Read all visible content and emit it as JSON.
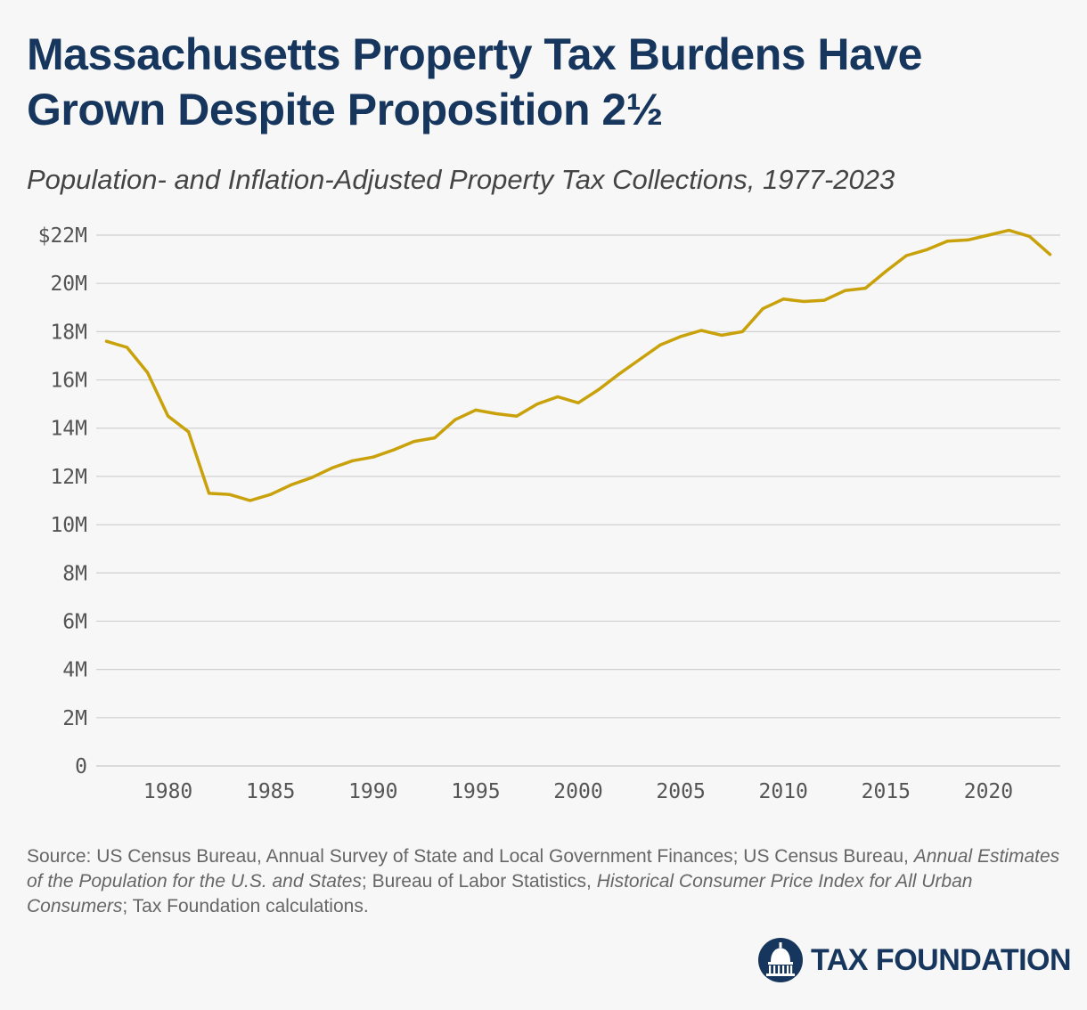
{
  "header": {
    "title": "Massachusetts Property Tax Burdens Have Grown Despite Proposition 2½",
    "subtitle": "Population- and Inflation-Adjusted Property Tax Collections, 1977-2023"
  },
  "source": {
    "prefix": "Source: US Census Bureau, Annual Survey of State and Local Government Finances; US Census Bureau,",
    "pub1": "Annual Estimates of the Population for the U.S. and States",
    "mid": "; Bureau of Labor Statistics,",
    "pub2": "Historical Consumer Price Index for All Urban Consumers",
    "suffix": "; Tax Foundation calculations."
  },
  "logo": {
    "text": "TAX FOUNDATION",
    "icon": "capitol-dome-icon"
  },
  "colors": {
    "line": "#c9a10a",
    "grid": "#d0d0d0",
    "title": "#17365d",
    "axis_text": "#555555"
  },
  "chart_data": {
    "type": "line",
    "title": "Massachusetts Property Tax Burdens Have Grown Despite Proposition 2½",
    "subtitle": "Population- and Inflation-Adjusted Property Tax Collections, 1977-2023",
    "xlim": [
      1976.5,
      2023.5
    ],
    "ylim": [
      0,
      22
    ],
    "y_ticks": [
      0,
      2,
      4,
      6,
      8,
      10,
      12,
      14,
      16,
      18,
      20,
      22
    ],
    "y_tick_labels": [
      "0",
      "2M",
      "4M",
      "6M",
      "8M",
      "10M",
      "12M",
      "14M",
      "16M",
      "18M",
      "20M",
      "$22M"
    ],
    "x_ticks": [
      1980,
      1985,
      1990,
      1995,
      2000,
      2005,
      2010,
      2015,
      2020
    ],
    "x_tick_labels": [
      "1980",
      "1985",
      "1990",
      "1995",
      "2000",
      "2005",
      "2010",
      "2015",
      "2020"
    ],
    "grid": "horizontal",
    "legend": "none",
    "series": [
      {
        "x": [
          1977,
          1978,
          1979,
          1980,
          1981,
          1982,
          1983,
          1984,
          1985,
          1986,
          1987,
          1988,
          1989,
          1990,
          1991,
          1992,
          1993,
          1994,
          1995,
          1996,
          1997,
          1998,
          1999,
          2000,
          2001,
          2002,
          2003,
          2004,
          2005,
          2006,
          2007,
          2008,
          2009,
          2010,
          2011,
          2012,
          2013,
          2014,
          2015,
          2016,
          2017,
          2018,
          2019,
          2020,
          2021,
          2022,
          2023
        ],
        "values": [
          17.6,
          17.35,
          16.3,
          14.5,
          13.85,
          11.3,
          11.25,
          11.0,
          11.25,
          11.65,
          11.95,
          12.35,
          12.65,
          12.8,
          13.1,
          13.45,
          13.6,
          14.35,
          14.75,
          14.6,
          14.5,
          15.0,
          15.3,
          15.05,
          15.6,
          16.25,
          16.85,
          17.45,
          17.8,
          18.05,
          17.85,
          18.0,
          18.95,
          19.35,
          19.25,
          19.3,
          19.7,
          19.8,
          20.5,
          21.15,
          21.4,
          21.75,
          21.8,
          22.0,
          22.2,
          21.95,
          21.2
        ]
      }
    ]
  }
}
